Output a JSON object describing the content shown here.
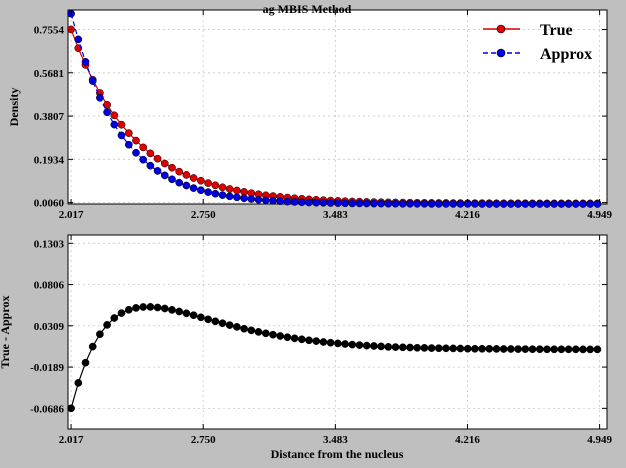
{
  "chart_data": [
    {
      "type": "line",
      "title": "ag  MBIS Method",
      "xlabel": "",
      "ylabel": "Density",
      "xlim": [
        2.0,
        4.99
      ],
      "ylim": [
        0.0,
        0.84
      ],
      "xticks": [
        2.017,
        2.75,
        3.483,
        4.216,
        4.949
      ],
      "xtick_labels": [
        "2.017",
        "2.750",
        "3.483",
        "4.216",
        "4.949"
      ],
      "yticks": [
        0.006,
        0.1934,
        0.3807,
        0.5681,
        0.7554
      ],
      "ytick_labels": [
        "0.0060",
        "0.1934",
        "0.3807",
        "0.5681",
        "0.7554"
      ],
      "grid": true,
      "legend": "top-right",
      "series": [
        {
          "name": "True",
          "color": "#dd0000",
          "marker": "circle",
          "x": [
            2.017,
            2.057,
            2.097,
            2.137,
            2.177,
            2.217,
            2.257,
            2.297,
            2.337,
            2.377,
            2.417,
            2.457,
            2.497,
            2.537,
            2.577,
            2.617,
            2.657,
            2.697,
            2.737,
            2.777,
            2.817,
            2.857,
            2.897,
            2.937,
            2.977,
            3.017,
            3.057,
            3.097,
            3.137,
            3.177,
            3.217,
            3.257,
            3.297,
            3.337,
            3.377,
            3.417,
            3.457,
            3.497,
            3.537,
            3.577,
            3.617,
            3.657,
            3.697,
            3.737,
            3.777,
            3.817,
            3.857,
            3.897,
            3.937,
            3.977,
            4.017,
            4.057,
            4.097,
            4.137,
            4.177,
            4.217,
            4.257,
            4.297,
            4.337,
            4.377,
            4.417,
            4.457,
            4.497,
            4.537,
            4.577,
            4.617,
            4.657,
            4.697,
            4.737,
            4.777,
            4.817,
            4.857,
            4.897,
            4.937
          ],
          "y": [
            0.7554,
            0.6745,
            0.6023,
            0.5381,
            0.4808,
            0.4296,
            0.3839,
            0.3432,
            0.3068,
            0.2743,
            0.2452,
            0.2193,
            0.1961,
            0.1755,
            0.157,
            0.1405,
            0.1258,
            0.1126,
            0.1008,
            0.0903,
            0.0809,
            0.0725,
            0.065,
            0.0583,
            0.0523,
            0.0469,
            0.0421,
            0.0378,
            0.034,
            0.0306,
            0.0275,
            0.0248,
            0.0223,
            0.0201,
            0.0182,
            0.0164,
            0.0148,
            0.0134,
            0.0121,
            0.011,
            0.01,
            0.0091,
            0.0083,
            0.0076,
            0.0069,
            0.0064,
            0.006,
            0.0056,
            0.0052,
            0.0049,
            0.0046,
            0.0044,
            0.0042,
            0.004,
            0.0038,
            0.0036,
            0.0035,
            0.0034,
            0.0033,
            0.0032,
            0.0031,
            0.003,
            0.0029,
            0.0029,
            0.0028,
            0.0028,
            0.0027,
            0.0027,
            0.0026,
            0.0026,
            0.0026,
            0.0025,
            0.0025,
            0.0025
          ]
        },
        {
          "name": "Approx",
          "color": "#0000dd",
          "marker": "circle",
          "x": [
            2.017,
            2.057,
            2.097,
            2.137,
            2.177,
            2.217,
            2.257,
            2.297,
            2.337,
            2.377,
            2.417,
            2.457,
            2.497,
            2.537,
            2.577,
            2.617,
            2.657,
            2.697,
            2.737,
            2.777,
            2.817,
            2.857,
            2.897,
            2.937,
            2.977,
            3.017,
            3.057,
            3.097,
            3.137,
            3.177,
            3.217,
            3.257,
            3.297,
            3.337,
            3.377,
            3.417,
            3.457,
            3.497,
            3.537,
            3.577,
            3.617,
            3.657,
            3.697,
            3.737,
            3.777,
            3.817,
            3.857,
            3.897,
            3.937,
            3.977,
            4.017,
            4.057,
            4.097,
            4.137,
            4.177,
            4.217,
            4.257,
            4.297,
            4.337,
            4.377,
            4.417,
            4.457,
            4.497,
            4.537,
            4.577,
            4.617,
            4.657,
            4.697,
            4.737,
            4.777,
            4.817,
            4.857,
            4.897,
            4.937
          ],
          "y": [
            0.824,
            0.7125,
            0.6159,
            0.5323,
            0.46,
            0.3976,
            0.3436,
            0.297,
            0.2567,
            0.2218,
            0.1917,
            0.1657,
            0.1432,
            0.1238,
            0.107,
            0.0924,
            0.0799,
            0.069,
            0.0597,
            0.0516,
            0.0446,
            0.0385,
            0.0333,
            0.0288,
            0.0249,
            0.0215,
            0.0186,
            0.016,
            0.0139,
            0.012,
            0.0104,
            0.009,
            0.0077,
            0.0067,
            0.0058,
            0.005,
            0.0043,
            0.0037,
            0.0032,
            0.0028,
            0.0024,
            0.0021,
            0.0018,
            0.0016,
            0.0014,
            0.0012,
            0.001,
            0.0009,
            0.0008,
            0.0007,
            0.0006,
            0.0005,
            0.0004,
            0.0004,
            0.0003,
            0.0003,
            0.0003,
            0.0002,
            0.0002,
            0.0002,
            0.0002,
            0.0001,
            0.0001,
            0.0001,
            0.0001,
            0.0001,
            0.0001,
            0.0001,
            0.0001,
            0.0001,
            0.0001,
            0.0001,
            0.0001,
            0.0001
          ]
        }
      ]
    },
    {
      "type": "line",
      "title": "",
      "xlabel": "Distance from the nucleus",
      "ylabel": "True - Approx",
      "xlim": [
        2.0,
        4.99
      ],
      "ylim": [
        -0.0935,
        0.1403
      ],
      "xticks": [
        2.017,
        2.75,
        3.483,
        4.216,
        4.949
      ],
      "xtick_labels": [
        "2.017",
        "2.750",
        "3.483",
        "4.216",
        "4.949"
      ],
      "yticks": [
        -0.0686,
        -0.0189,
        0.0309,
        0.0806,
        0.1303
      ],
      "ytick_labels": [
        "-0.0686",
        "-0.0189",
        "0.0309",
        "0.0806",
        "0.1303"
      ],
      "grid": true,
      "series": [
        {
          "name": "",
          "color": "#000000",
          "marker": "circle",
          "x": [
            2.017,
            2.057,
            2.097,
            2.137,
            2.177,
            2.217,
            2.257,
            2.297,
            2.337,
            2.377,
            2.417,
            2.457,
            2.497,
            2.537,
            2.577,
            2.617,
            2.657,
            2.697,
            2.737,
            2.777,
            2.817,
            2.857,
            2.897,
            2.937,
            2.977,
            3.017,
            3.057,
            3.097,
            3.137,
            3.177,
            3.217,
            3.257,
            3.297,
            3.337,
            3.377,
            3.417,
            3.457,
            3.497,
            3.537,
            3.577,
            3.617,
            3.657,
            3.697,
            3.737,
            3.777,
            3.817,
            3.857,
            3.897,
            3.937,
            3.977,
            4.017,
            4.057,
            4.097,
            4.137,
            4.177,
            4.217,
            4.257,
            4.297,
            4.337,
            4.377,
            4.417,
            4.457,
            4.497,
            4.537,
            4.577,
            4.617,
            4.657,
            4.697,
            4.737,
            4.777,
            4.817,
            4.857,
            4.897,
            4.937
          ],
          "y": [
            -0.0686,
            -0.038,
            -0.0136,
            0.0058,
            0.0208,
            0.032,
            0.0403,
            0.0462,
            0.0501,
            0.0525,
            0.0535,
            0.0536,
            0.0529,
            0.0517,
            0.05,
            0.0481,
            0.0459,
            0.0436,
            0.0411,
            0.0387,
            0.0363,
            0.034,
            0.0317,
            0.0295,
            0.0274,
            0.0254,
            0.0235,
            0.0218,
            0.0201,
            0.0186,
            0.0171,
            0.0158,
            0.0146,
            0.0134,
            0.0124,
            0.0114,
            0.0105,
            0.0097,
            0.0089,
            0.0082,
            0.0076,
            0.007,
            0.0065,
            0.006,
            0.0055,
            0.0052,
            0.005,
            0.0047,
            0.0044,
            0.0042,
            0.004,
            0.0039,
            0.0038,
            0.0036,
            0.0035,
            0.0033,
            0.0032,
            0.0032,
            0.0031,
            0.003,
            0.0029,
            0.0029,
            0.0028,
            0.0028,
            0.0027,
            0.0027,
            0.0026,
            0.0026,
            0.0025,
            0.0025,
            0.0025,
            0.0024,
            0.0024,
            0.0024
          ]
        }
      ]
    }
  ]
}
